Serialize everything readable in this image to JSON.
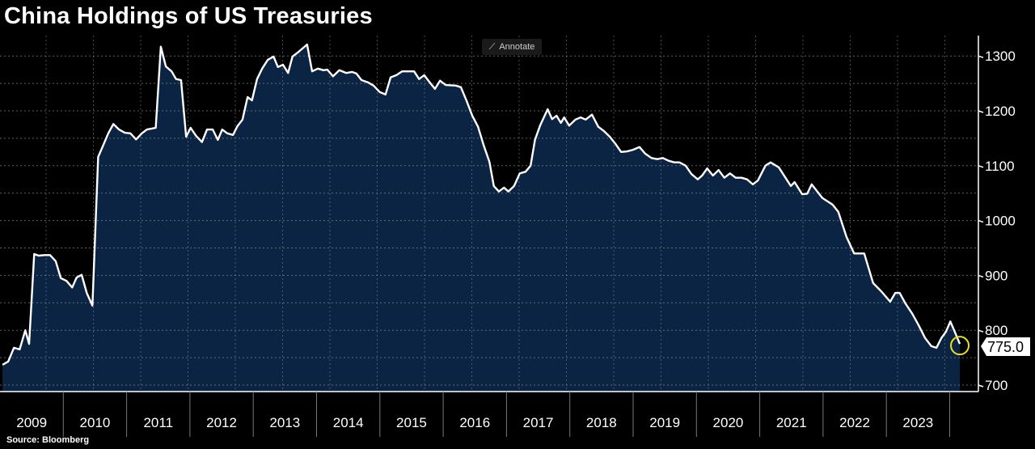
{
  "chart_data": {
    "type": "area",
    "title": "China Holdings of US Treasuries",
    "source": "Source: Bloomberg",
    "xlabel": "",
    "ylabel": "",
    "ylim": [
      688,
      1330
    ],
    "xlim": [
      2009.0,
      2024.2
    ],
    "y_ticks": [
      700,
      800,
      900,
      1000,
      1100,
      1200,
      1300
    ],
    "x_tick_labels": [
      "2009",
      "2010",
      "2011",
      "2012",
      "2013",
      "2014",
      "2015",
      "2016",
      "2017",
      "2018",
      "2019",
      "2020",
      "2021",
      "2022",
      "2023"
    ],
    "grid": true,
    "last_value_label": "775.0",
    "colors": {
      "fill": "#0b2444",
      "line": "#ffffff",
      "marker": "#e8e020"
    },
    "series": [
      {
        "name": "China Holdings of US Treasuries",
        "points": [
          [
            2009.04,
            737
          ],
          [
            2009.13,
            743
          ],
          [
            2009.22,
            768
          ],
          [
            2009.31,
            765
          ],
          [
            2009.4,
            800
          ],
          [
            2009.46,
            775
          ],
          [
            2009.54,
            939
          ],
          [
            2009.61,
            936
          ],
          [
            2009.7,
            937
          ],
          [
            2009.79,
            937
          ],
          [
            2009.88,
            926
          ],
          [
            2009.96,
            895
          ],
          [
            2010.05,
            890
          ],
          [
            2010.14,
            878
          ],
          [
            2010.21,
            896
          ],
          [
            2010.29,
            901
          ],
          [
            2010.37,
            868
          ],
          [
            2010.46,
            845
          ],
          [
            2010.55,
            1116
          ],
          [
            2010.63,
            1137
          ],
          [
            2010.71,
            1159
          ],
          [
            2010.79,
            1176
          ],
          [
            2010.88,
            1166
          ],
          [
            2010.97,
            1160
          ],
          [
            2011.06,
            1159
          ],
          [
            2011.15,
            1148
          ],
          [
            2011.24,
            1159
          ],
          [
            2011.32,
            1166
          ],
          [
            2011.46,
            1169
          ],
          [
            2011.54,
            1317
          ],
          [
            2011.62,
            1281
          ],
          [
            2011.71,
            1272
          ],
          [
            2011.78,
            1258
          ],
          [
            2011.86,
            1256
          ],
          [
            2011.94,
            1153
          ],
          [
            2012.01,
            1169
          ],
          [
            2012.1,
            1154
          ],
          [
            2012.19,
            1143
          ],
          [
            2012.27,
            1166
          ],
          [
            2012.36,
            1166
          ],
          [
            2012.44,
            1147
          ],
          [
            2012.51,
            1166
          ],
          [
            2012.59,
            1159
          ],
          [
            2012.68,
            1156
          ],
          [
            2012.75,
            1172
          ],
          [
            2012.83,
            1184
          ],
          [
            2012.91,
            1225
          ],
          [
            2012.98,
            1219
          ],
          [
            2013.06,
            1258
          ],
          [
            2013.14,
            1277
          ],
          [
            2013.23,
            1293
          ],
          [
            2013.32,
            1299
          ],
          [
            2013.39,
            1280
          ],
          [
            2013.47,
            1284
          ],
          [
            2013.55,
            1269
          ],
          [
            2013.62,
            1299
          ],
          [
            2013.7,
            1306
          ],
          [
            2013.85,
            1321
          ],
          [
            2013.93,
            1272
          ],
          [
            2014.02,
            1277
          ],
          [
            2014.11,
            1274
          ],
          [
            2014.17,
            1275
          ],
          [
            2014.26,
            1263
          ],
          [
            2014.36,
            1274
          ],
          [
            2014.47,
            1269
          ],
          [
            2014.56,
            1271
          ],
          [
            2014.63,
            1268
          ],
          [
            2014.71,
            1256
          ],
          [
            2014.81,
            1252
          ],
          [
            2014.9,
            1246
          ],
          [
            2015.0,
            1234
          ],
          [
            2015.09,
            1230
          ],
          [
            2015.17,
            1261
          ],
          [
            2015.26,
            1265
          ],
          [
            2015.35,
            1272
          ],
          [
            2015.54,
            1272
          ],
          [
            2015.62,
            1258
          ],
          [
            2015.7,
            1265
          ],
          [
            2015.78,
            1253
          ],
          [
            2015.87,
            1240
          ],
          [
            2015.95,
            1255
          ],
          [
            2016.04,
            1247
          ],
          [
            2016.2,
            1246
          ],
          [
            2016.28,
            1243
          ],
          [
            2016.37,
            1218
          ],
          [
            2016.46,
            1191
          ],
          [
            2016.55,
            1171
          ],
          [
            2016.64,
            1137
          ],
          [
            2016.73,
            1107
          ],
          [
            2016.8,
            1063
          ],
          [
            2016.88,
            1053
          ],
          [
            2016.96,
            1060
          ],
          [
            2017.03,
            1053
          ],
          [
            2017.12,
            1063
          ],
          [
            2017.21,
            1086
          ],
          [
            2017.3,
            1089
          ],
          [
            2017.38,
            1100
          ],
          [
            2017.45,
            1147
          ],
          [
            2017.53,
            1173
          ],
          [
            2017.65,
            1203
          ],
          [
            2017.72,
            1185
          ],
          [
            2017.79,
            1191
          ],
          [
            2017.86,
            1178
          ],
          [
            2017.91,
            1188
          ],
          [
            2017.99,
            1173
          ],
          [
            2018.09,
            1184
          ],
          [
            2018.17,
            1188
          ],
          [
            2018.25,
            1184
          ],
          [
            2018.35,
            1193
          ],
          [
            2018.45,
            1171
          ],
          [
            2018.54,
            1163
          ],
          [
            2018.63,
            1153
          ],
          [
            2018.72,
            1140
          ],
          [
            2018.81,
            1125
          ],
          [
            2018.9,
            1126
          ],
          [
            2019.0,
            1129
          ],
          [
            2019.1,
            1134
          ],
          [
            2019.19,
            1122
          ],
          [
            2019.29,
            1114
          ],
          [
            2019.38,
            1112
          ],
          [
            2019.47,
            1114
          ],
          [
            2019.56,
            1109
          ],
          [
            2019.65,
            1106
          ],
          [
            2019.73,
            1106
          ],
          [
            2019.83,
            1100
          ],
          [
            2019.92,
            1085
          ],
          [
            2020.02,
            1075
          ],
          [
            2020.09,
            1082
          ],
          [
            2020.17,
            1095
          ],
          [
            2020.26,
            1082
          ],
          [
            2020.35,
            1092
          ],
          [
            2020.44,
            1078
          ],
          [
            2020.53,
            1086
          ],
          [
            2020.62,
            1078
          ],
          [
            2020.71,
            1078
          ],
          [
            2020.8,
            1075
          ],
          [
            2020.89,
            1066
          ],
          [
            2020.97,
            1073
          ],
          [
            2021.09,
            1100
          ],
          [
            2021.17,
            1106
          ],
          [
            2021.3,
            1097
          ],
          [
            2021.49,
            1063
          ],
          [
            2021.55,
            1070
          ],
          [
            2021.67,
            1048
          ],
          [
            2021.75,
            1049
          ],
          [
            2021.82,
            1066
          ],
          [
            2021.99,
            1041
          ],
          [
            2022.15,
            1029
          ],
          [
            2022.24,
            1016
          ],
          [
            2022.37,
            970
          ],
          [
            2022.49,
            940
          ],
          [
            2022.65,
            940
          ],
          [
            2022.79,
            886
          ],
          [
            2022.92,
            871
          ],
          [
            2023.06,
            852
          ],
          [
            2023.14,
            868
          ],
          [
            2023.21,
            868
          ],
          [
            2023.3,
            849
          ],
          [
            2023.41,
            830
          ],
          [
            2023.51,
            809
          ],
          [
            2023.61,
            786
          ],
          [
            2023.71,
            771
          ],
          [
            2023.79,
            768
          ],
          [
            2023.87,
            786
          ],
          [
            2023.94,
            797
          ],
          [
            2024.01,
            816
          ],
          [
            2024.08,
            797
          ],
          [
            2024.16,
            775
          ]
        ]
      }
    ]
  },
  "toolbar": {
    "annotate_label": "Annotate",
    "annotate_icon": "pencil-icon"
  }
}
